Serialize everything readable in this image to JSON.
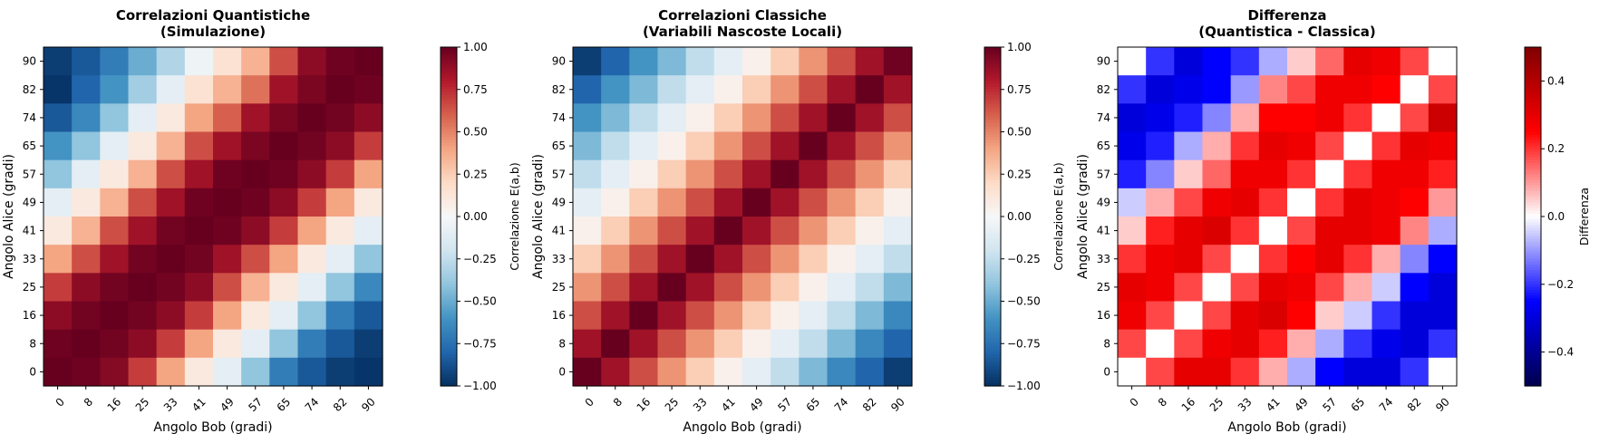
{
  "chart_data": [
    {
      "type": "heatmap",
      "title": "Correlazioni Quantistiche\n(Simulazione)",
      "xlabel": "Angolo Bob (gradi)",
      "ylabel": "Angolo Alice (gradi)",
      "x_ticks": [
        "0",
        "8",
        "16",
        "25",
        "33",
        "41",
        "49",
        "57",
        "65",
        "74",
        "82",
        "90"
      ],
      "y_ticks": [
        "0",
        "8",
        "16",
        "25",
        "33",
        "41",
        "49",
        "57",
        "65",
        "74",
        "82",
        "90"
      ],
      "colormap": "RdBu_r",
      "vmin": -1.0,
      "vmax": 1.0,
      "colorbar_label": "Correlazione E(a,b)",
      "colorbar_ticks": [
        "−1.00",
        "−0.75",
        "−0.50",
        "−0.25",
        "0.00",
        "0.25",
        "0.50",
        "0.75",
        "1.00"
      ],
      "colorbar_tick_values": [
        -1.0,
        -0.75,
        -0.5,
        -0.25,
        0.0,
        0.25,
        0.5,
        0.75,
        1.0
      ],
      "values_desc_note": "rows from Alice 90 (top) to Alice 0 (bottom)",
      "values": [
        [
          -0.95,
          -0.85,
          -0.7,
          -0.5,
          -0.3,
          -0.05,
          0.15,
          0.35,
          0.65,
          0.9,
          0.98,
          1.0
        ],
        [
          -0.98,
          -0.8,
          -0.6,
          -0.35,
          -0.1,
          0.15,
          0.35,
          0.55,
          0.85,
          0.95,
          1.0,
          0.98
        ],
        [
          -0.85,
          -0.65,
          -0.4,
          -0.1,
          0.1,
          0.4,
          0.6,
          0.85,
          0.95,
          1.0,
          0.97,
          0.9
        ],
        [
          -0.6,
          -0.4,
          -0.1,
          0.1,
          0.35,
          0.65,
          0.85,
          0.95,
          1.0,
          0.97,
          0.9,
          0.7
        ],
        [
          -0.4,
          -0.1,
          0.1,
          0.35,
          0.65,
          0.85,
          0.98,
          1.0,
          0.98,
          0.9,
          0.7,
          0.4
        ],
        [
          -0.1,
          0.1,
          0.35,
          0.65,
          0.85,
          0.98,
          1.0,
          0.98,
          0.9,
          0.7,
          0.4,
          0.1
        ],
        [
          0.1,
          0.35,
          0.65,
          0.85,
          0.97,
          1.0,
          0.98,
          0.9,
          0.7,
          0.4,
          0.1,
          -0.1
        ],
        [
          0.4,
          0.65,
          0.85,
          0.97,
          1.0,
          0.97,
          0.85,
          0.65,
          0.4,
          0.1,
          -0.1,
          -0.4
        ],
        [
          0.7,
          0.9,
          0.97,
          1.0,
          0.97,
          0.9,
          0.65,
          0.35,
          0.1,
          -0.1,
          -0.4,
          -0.65
        ],
        [
          0.9,
          0.97,
          1.0,
          0.97,
          0.9,
          0.7,
          0.4,
          0.1,
          -0.1,
          -0.4,
          -0.7,
          -0.85
        ],
        [
          0.98,
          1.0,
          0.97,
          0.9,
          0.7,
          0.4,
          0.1,
          -0.1,
          -0.4,
          -0.7,
          -0.85,
          -0.95
        ],
        [
          1.0,
          0.98,
          0.92,
          0.7,
          0.4,
          0.1,
          -0.1,
          -0.4,
          -0.7,
          -0.85,
          -0.95,
          -0.98
        ]
      ]
    },
    {
      "type": "heatmap",
      "title": "Correlazioni Classiche\n(Variabili Nascoste Locali)",
      "xlabel": "Angolo Bob (gradi)",
      "ylabel": "Angolo Alice (gradi)",
      "x_ticks": [
        "0",
        "8",
        "16",
        "25",
        "33",
        "41",
        "49",
        "57",
        "65",
        "74",
        "82",
        "90"
      ],
      "y_ticks": [
        "0",
        "8",
        "16",
        "25",
        "33",
        "41",
        "49",
        "57",
        "65",
        "74",
        "82",
        "90"
      ],
      "colormap": "RdBu_r",
      "vmin": -1.0,
      "vmax": 1.0,
      "colorbar_label": "Correlazione E(a,b)",
      "colorbar_ticks": [
        "−1.00",
        "−0.75",
        "−0.50",
        "−0.25",
        "0.00",
        "0.25",
        "0.50",
        "0.75",
        "1.00"
      ],
      "colorbar_tick_values": [
        -1.0,
        -0.75,
        -0.5,
        -0.25,
        0.0,
        0.25,
        0.5,
        0.75,
        1.0
      ],
      "values": [
        [
          -0.95,
          -0.8,
          -0.6,
          -0.45,
          -0.25,
          -0.1,
          0.05,
          0.25,
          0.45,
          0.65,
          0.85,
          0.98
        ],
        [
          -0.8,
          -0.6,
          -0.45,
          -0.25,
          -0.1,
          0.05,
          0.25,
          0.45,
          0.65,
          0.85,
          1.0,
          0.85
        ],
        [
          -0.6,
          -0.45,
          -0.25,
          -0.1,
          0.05,
          0.25,
          0.45,
          0.65,
          0.85,
          1.0,
          0.85,
          0.65
        ],
        [
          -0.45,
          -0.25,
          -0.1,
          0.05,
          0.25,
          0.45,
          0.65,
          0.85,
          1.0,
          0.85,
          0.65,
          0.45
        ],
        [
          -0.25,
          -0.1,
          0.05,
          0.25,
          0.45,
          0.65,
          0.85,
          1.0,
          0.85,
          0.65,
          0.45,
          0.25
        ],
        [
          -0.1,
          0.05,
          0.25,
          0.45,
          0.65,
          0.85,
          1.0,
          0.85,
          0.65,
          0.45,
          0.25,
          0.05
        ],
        [
          0.05,
          0.25,
          0.45,
          0.65,
          0.85,
          1.0,
          0.85,
          0.65,
          0.45,
          0.25,
          0.05,
          -0.1
        ],
        [
          0.25,
          0.45,
          0.65,
          0.85,
          1.0,
          0.85,
          0.65,
          0.45,
          0.25,
          0.05,
          -0.1,
          -0.25
        ],
        [
          0.45,
          0.65,
          0.85,
          1.0,
          0.85,
          0.65,
          0.45,
          0.25,
          0.05,
          -0.1,
          -0.25,
          -0.45
        ],
        [
          0.65,
          0.85,
          1.0,
          0.85,
          0.65,
          0.45,
          0.25,
          0.05,
          -0.1,
          -0.25,
          -0.45,
          -0.65
        ],
        [
          0.85,
          1.0,
          0.85,
          0.65,
          0.45,
          0.25,
          0.05,
          -0.1,
          -0.25,
          -0.45,
          -0.65,
          -0.8
        ],
        [
          1.0,
          0.85,
          0.65,
          0.45,
          0.25,
          0.05,
          -0.1,
          -0.25,
          -0.45,
          -0.65,
          -0.8,
          -0.95
        ]
      ]
    },
    {
      "type": "heatmap",
      "title": "Differenza\n(Quantistica - Classica)",
      "xlabel": "Angolo Bob (gradi)",
      "ylabel": "Angolo Alice (gradi)",
      "x_ticks": [
        "0",
        "8",
        "16",
        "25",
        "33",
        "41",
        "49",
        "57",
        "65",
        "74",
        "82",
        "90"
      ],
      "y_ticks": [
        "0",
        "8",
        "16",
        "25",
        "33",
        "41",
        "49",
        "57",
        "65",
        "74",
        "82",
        "90"
      ],
      "colormap": "seismic",
      "vmin": -0.5,
      "vmax": 0.5,
      "colorbar_label": "Differenza",
      "colorbar_ticks": [
        "−0.4",
        "−0.2",
        "0.0",
        "0.2",
        "0.4"
      ],
      "colorbar_tick_values": [
        -0.4,
        -0.2,
        0.0,
        0.2,
        0.4
      ],
      "values": [
        [
          0.0,
          -0.2,
          -0.3,
          -0.25,
          -0.2,
          -0.08,
          0.05,
          0.15,
          0.3,
          0.28,
          0.18,
          0.0
        ],
        [
          -0.2,
          -0.3,
          -0.28,
          -0.25,
          -0.1,
          0.12,
          0.18,
          0.28,
          0.28,
          0.25,
          0.0,
          0.18
        ],
        [
          -0.3,
          -0.28,
          -0.22,
          -0.12,
          0.08,
          0.25,
          0.25,
          0.28,
          0.2,
          0.0,
          0.18,
          0.35
        ],
        [
          -0.28,
          -0.22,
          -0.08,
          0.08,
          0.2,
          0.3,
          0.28,
          0.18,
          0.0,
          0.2,
          0.3,
          0.28
        ],
        [
          -0.22,
          -0.12,
          0.05,
          0.15,
          0.28,
          0.28,
          0.2,
          0.0,
          0.2,
          0.28,
          0.28,
          0.22
        ],
        [
          -0.05,
          0.08,
          0.18,
          0.28,
          0.3,
          0.2,
          0.0,
          0.2,
          0.3,
          0.28,
          0.25,
          0.1
        ],
        [
          0.05,
          0.22,
          0.3,
          0.32,
          0.2,
          0.0,
          0.18,
          0.3,
          0.3,
          0.28,
          0.12,
          -0.08
        ],
        [
          0.2,
          0.28,
          0.3,
          0.18,
          0.0,
          0.2,
          0.25,
          0.3,
          0.2,
          0.08,
          -0.12,
          -0.25
        ],
        [
          0.3,
          0.28,
          0.18,
          0.0,
          0.18,
          0.3,
          0.28,
          0.18,
          0.08,
          -0.05,
          -0.25,
          -0.3
        ],
        [
          0.28,
          0.18,
          0.0,
          0.18,
          0.3,
          0.32,
          0.25,
          0.05,
          -0.05,
          -0.2,
          -0.3,
          -0.3
        ],
        [
          0.18,
          0.0,
          0.18,
          0.28,
          0.3,
          0.22,
          0.08,
          -0.08,
          -0.2,
          -0.28,
          -0.3,
          -0.2
        ],
        [
          0.0,
          0.18,
          0.3,
          0.3,
          0.2,
          0.08,
          -0.08,
          -0.25,
          -0.3,
          -0.3,
          -0.2,
          0.0
        ]
      ]
    }
  ]
}
